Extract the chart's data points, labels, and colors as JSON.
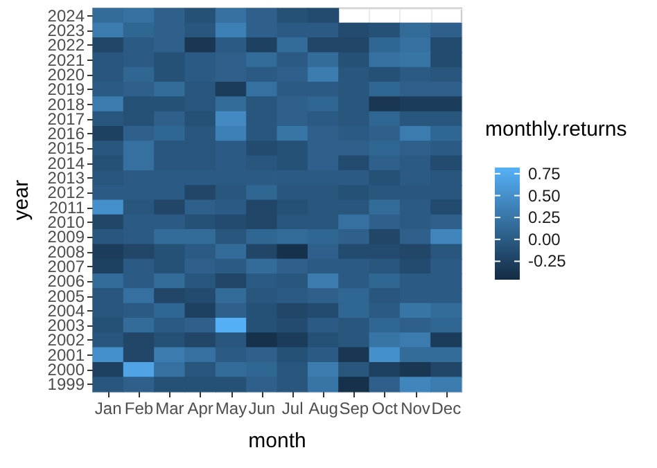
{
  "chart_data": {
    "type": "heatmap",
    "xlabel": "month",
    "ylabel": "year",
    "legend_title": "monthly.returns",
    "grid": true,
    "categories": [
      "Jan",
      "Feb",
      "Mar",
      "Apr",
      "May",
      "Jun",
      "Jul",
      "Aug",
      "Sep",
      "Oct",
      "Nov",
      "Dec"
    ],
    "y_categories": [
      "2024",
      "2023",
      "2022",
      "2021",
      "2020",
      "2019",
      "2018",
      "2017",
      "2016",
      "2015",
      "2014",
      "2013",
      "2012",
      "2011",
      "2010",
      "2009",
      "2008",
      "2007",
      "2006",
      "2005",
      "2004",
      "2003",
      "2002",
      "2001",
      "2000",
      "1999"
    ],
    "cells": [
      [
        0.15,
        0.2,
        0.05,
        -0.1,
        0.2,
        0.05,
        -0.1,
        -0.15,
        null,
        null,
        null,
        null
      ],
      [
        0.3,
        0.1,
        0.05,
        -0.05,
        0.35,
        0.05,
        0.0,
        0.0,
        -0.15,
        -0.1,
        0.15,
        0.05
      ],
      [
        -0.2,
        0.0,
        0.05,
        -0.35,
        0.0,
        -0.25,
        0.15,
        -0.2,
        -0.2,
        0.1,
        0.2,
        -0.15
      ],
      [
        -0.05,
        0.0,
        -0.1,
        0.0,
        0.05,
        0.15,
        0.0,
        0.15,
        -0.1,
        0.2,
        0.25,
        -0.15
      ],
      [
        -0.05,
        0.1,
        -0.1,
        0.0,
        0.05,
        0.0,
        0.05,
        0.3,
        -0.05,
        -0.1,
        0.0,
        -0.05
      ],
      [
        0.0,
        0.05,
        0.15,
        -0.05,
        -0.3,
        0.2,
        0.0,
        0.0,
        -0.05,
        0.1,
        0.05,
        0.05
      ],
      [
        0.3,
        -0.1,
        -0.1,
        -0.05,
        0.15,
        -0.05,
        0.05,
        0.1,
        -0.05,
        -0.35,
        -0.3,
        -0.3
      ],
      [
        -0.05,
        -0.1,
        0.05,
        -0.1,
        0.45,
        -0.05,
        0.05,
        0.0,
        -0.05,
        0.1,
        -0.05,
        -0.05
      ],
      [
        -0.25,
        0.05,
        0.1,
        -0.05,
        0.35,
        -0.05,
        0.25,
        0.05,
        0.0,
        0.05,
        0.3,
        0.1
      ],
      [
        -0.05,
        0.2,
        -0.05,
        -0.05,
        0.0,
        -0.15,
        -0.1,
        0.05,
        0.05,
        0.1,
        0.05,
        0.0
      ],
      [
        -0.1,
        0.2,
        -0.05,
        -0.05,
        0.0,
        -0.05,
        -0.1,
        0.05,
        -0.15,
        0.05,
        0.0,
        -0.15
      ],
      [
        -0.05,
        0.0,
        0.0,
        0.0,
        0.0,
        0.0,
        0.0,
        0.0,
        0.0,
        -0.1,
        0.0,
        -0.05
      ],
      [
        0.0,
        0.0,
        0.0,
        -0.2,
        -0.05,
        0.1,
        -0.05,
        -0.05,
        -0.1,
        -0.05,
        -0.05,
        -0.05
      ],
      [
        0.5,
        -0.05,
        -0.2,
        0.05,
        0.0,
        -0.2,
        -0.1,
        -0.05,
        -0.05,
        0.15,
        0.0,
        -0.15
      ],
      [
        -0.2,
        0.0,
        0.0,
        -0.1,
        -0.15,
        -0.2,
        -0.05,
        -0.05,
        0.2,
        0.05,
        0.0,
        0.05
      ],
      [
        -0.05,
        0.0,
        0.15,
        0.15,
        -0.05,
        0.1,
        0.15,
        0.1,
        0.05,
        -0.2,
        0.05,
        0.4
      ],
      [
        -0.3,
        -0.2,
        -0.1,
        0.0,
        0.15,
        -0.2,
        -0.4,
        0.05,
        -0.15,
        -0.15,
        -0.2,
        -0.05
      ],
      [
        -0.25,
        0.0,
        -0.1,
        0.05,
        0.0,
        0.15,
        0.05,
        0.0,
        0.0,
        -0.05,
        -0.15,
        0.0
      ],
      [
        0.15,
        0.0,
        0.15,
        -0.05,
        -0.2,
        0.0,
        -0.05,
        0.3,
        0.0,
        0.1,
        0.0,
        0.0
      ],
      [
        -0.05,
        0.2,
        -0.2,
        -0.15,
        0.15,
        -0.05,
        0.0,
        0.05,
        0.1,
        -0.05,
        0.0,
        0.0
      ],
      [
        -0.05,
        0.0,
        0.1,
        -0.25,
        0.05,
        -0.1,
        -0.2,
        -0.15,
        0.1,
        0.0,
        0.25,
        0.15
      ],
      [
        -0.1,
        0.15,
        0.0,
        0.05,
        0.8,
        -0.1,
        -0.15,
        0.0,
        -0.05,
        0.1,
        0.05,
        0.1
      ],
      [
        -0.05,
        -0.2,
        -0.1,
        -0.2,
        -0.05,
        -0.4,
        -0.3,
        -0.1,
        -0.05,
        0.25,
        0.3,
        -0.3
      ],
      [
        0.5,
        -0.2,
        0.3,
        0.2,
        0.0,
        0.05,
        -0.1,
        0.0,
        -0.35,
        0.5,
        0.15,
        0.15
      ],
      [
        -0.25,
        0.7,
        0.2,
        -0.05,
        0.15,
        0.1,
        -0.05,
        0.3,
        -0.05,
        -0.25,
        -0.35,
        -0.2
      ],
      [
        -0.05,
        0.05,
        -0.1,
        -0.1,
        -0.1,
        0.05,
        -0.05,
        0.25,
        -0.4,
        0.05,
        0.4,
        0.3
      ]
    ],
    "clim": [
      -0.46,
      0.82
    ],
    "cticks": [
      0.75,
      {
        "value": 0.5,
        "label": "0.50"
      },
      0.25,
      {
        "value": 0,
        "label": "0.00"
      },
      -0.25
    ],
    "colors": [
      "#132b43",
      "#56b1f7"
    ]
  }
}
